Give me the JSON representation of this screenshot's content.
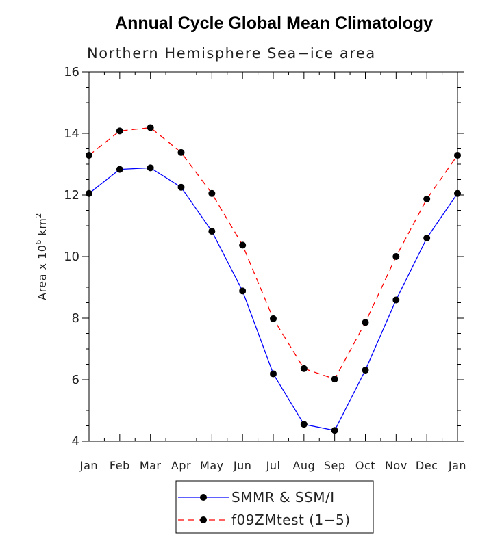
{
  "chart_data": {
    "type": "line",
    "title": "Annual Cycle Global Mean Climatology",
    "subtitle": "Northern Hemisphere Sea−ice area",
    "ylabel_prefix": "Area x 10",
    "ylabel_exp1": "6",
    "ylabel_mid": " km",
    "ylabel_exp2": "2",
    "xlabel": "",
    "categories": [
      "Jan",
      "Feb",
      "Mar",
      "Apr",
      "May",
      "Jun",
      "Jul",
      "Aug",
      "Sep",
      "Oct",
      "Nov",
      "Dec",
      "Jan"
    ],
    "ylim": [
      4,
      16
    ],
    "yticks": [
      "4",
      "6",
      "8",
      "10",
      "12",
      "14",
      "16"
    ],
    "legend_position": "bottom-center",
    "grid": false,
    "series": [
      {
        "name": "SMMR & SSM/I",
        "color": "#0000ff",
        "dash": "solid",
        "values": [
          12.05,
          12.83,
          12.88,
          12.25,
          10.82,
          8.88,
          6.19,
          4.55,
          4.35,
          6.31,
          8.59,
          10.6,
          12.05
        ]
      },
      {
        "name": "f09ZMtest (1−5)",
        "color": "#ff0000",
        "dash": "dashed",
        "values": [
          13.29,
          14.08,
          14.19,
          13.38,
          12.05,
          10.37,
          7.98,
          6.36,
          6.02,
          7.86,
          10.0,
          11.87,
          13.29
        ]
      }
    ]
  }
}
